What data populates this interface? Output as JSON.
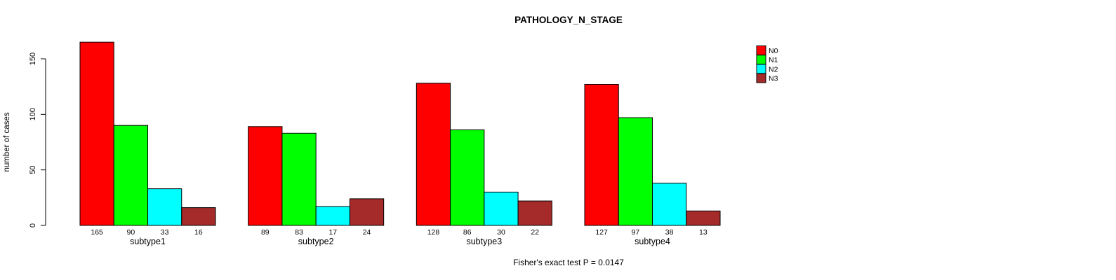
{
  "chart_data": {
    "type": "bar",
    "title": "PATHOLOGY_N_STAGE",
    "ylabel": "number of cases",
    "xlabel": "",
    "categories": [
      "subtype1",
      "subtype2",
      "subtype3",
      "subtype4"
    ],
    "series": [
      {
        "name": "N0",
        "color": "#ff0000",
        "values": [
          165,
          89,
          128,
          127
        ]
      },
      {
        "name": "N1",
        "color": "#00ff00",
        "values": [
          90,
          83,
          86,
          97
        ]
      },
      {
        "name": "N2",
        "color": "#00ffff",
        "values": [
          33,
          17,
          30,
          38
        ]
      },
      {
        "name": "N3",
        "color": "#a52a2a",
        "values": [
          16,
          24,
          22,
          13
        ]
      }
    ],
    "yticks": [
      0,
      50,
      100,
      150
    ],
    "ylim": [
      0,
      165
    ],
    "grid": "off",
    "legend_position": "top-right",
    "value_labels": true,
    "bar_border_color": "#000000",
    "axis_color": "#000000",
    "background_color": "#ffffff",
    "annotation": "Fisher's exact test P = 0.0147"
  }
}
